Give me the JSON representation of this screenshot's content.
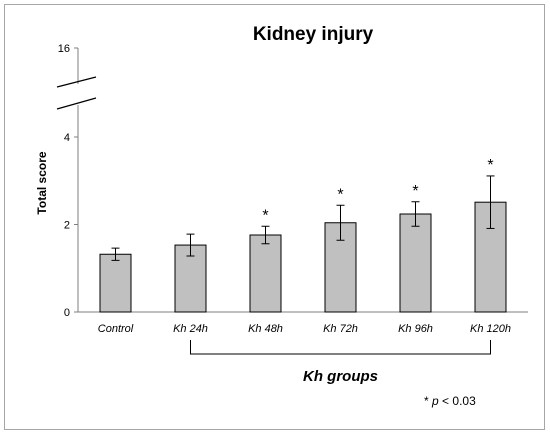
{
  "chart_data": {
    "type": "bar",
    "title": "Kidney injury",
    "ylabel": "Total score",
    "xlabel": "",
    "categories": [
      "Control",
      "Kh 24h",
      "Kh 48h",
      "Kh 72h",
      "Kh 96h",
      "Kh 120h"
    ],
    "values": [
      1.32,
      1.53,
      1.76,
      2.04,
      2.24,
      2.51
    ],
    "error": [
      0.14,
      0.25,
      0.2,
      0.4,
      0.28,
      0.6
    ],
    "significant": [
      false,
      false,
      true,
      true,
      true,
      true
    ],
    "significance_marker": "*",
    "yticks": [
      "0",
      "2",
      "4",
      "16"
    ],
    "ylim": [
      0,
      16
    ],
    "axis_break": {
      "between": [
        4,
        16
      ]
    },
    "group_bracket": {
      "label": "Kh groups",
      "from_category": 1,
      "to_category": 5
    },
    "footnote": {
      "marker": "*",
      "p_label": "p",
      "text": "< 0.03"
    },
    "bar_color": "#c0c0c0",
    "grid": false
  }
}
